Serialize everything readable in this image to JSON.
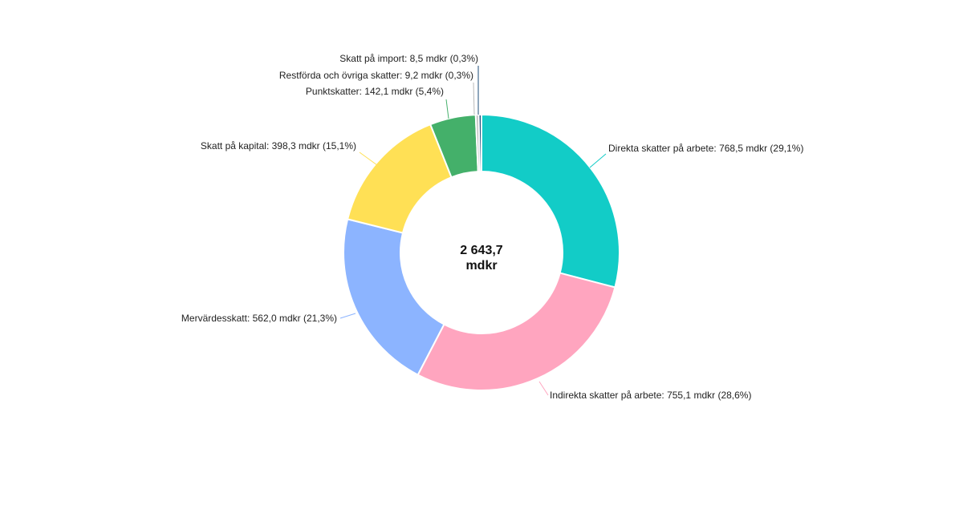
{
  "chart_data": {
    "type": "pie",
    "variant": "donut",
    "unit": "mdkr",
    "total": {
      "value": 2643.7,
      "line1": "2 643,7",
      "line2": "mdkr"
    },
    "slices": [
      {
        "name": "Direkta skatter på arbete",
        "value": 768.5,
        "percent": 29.1,
        "color": "#12ccc7",
        "label": "Direkta skatter på arbete: 768,5 mdkr (29,1%)"
      },
      {
        "name": "Indirekta skatter på arbete",
        "value": 755.1,
        "percent": 28.6,
        "color": "#ffa5bf",
        "label": "Indirekta skatter på arbete: 755,1 mdkr (28,6%)"
      },
      {
        "name": "Mervärdesskatt",
        "value": 562.0,
        "percent": 21.3,
        "color": "#8cb4ff",
        "label": "Mervärdesskatt: 562,0 mdkr (21,3%)"
      },
      {
        "name": "Skatt på kapital",
        "value": 398.3,
        "percent": 15.1,
        "color": "#ffe055",
        "label": "Skatt på kapital: 398,3 mdkr (15,1%)"
      },
      {
        "name": "Punktskatter",
        "value": 142.1,
        "percent": 5.4,
        "color": "#44b06a",
        "label": "Punktskatter: 142,1 mdkr (5,4%)"
      },
      {
        "name": "Restförda och övriga skatter",
        "value": 9.2,
        "percent": 0.3,
        "color": "#b9b9b9",
        "label": "Restförda och övriga skatter: 9,2 mdkr (0,3%)"
      },
      {
        "name": "Skatt på import",
        "value": 8.5,
        "percent": 0.3,
        "color": "#1f4e79",
        "label": "Skatt på import: 8,5 mdkr (0,3%)"
      }
    ]
  }
}
